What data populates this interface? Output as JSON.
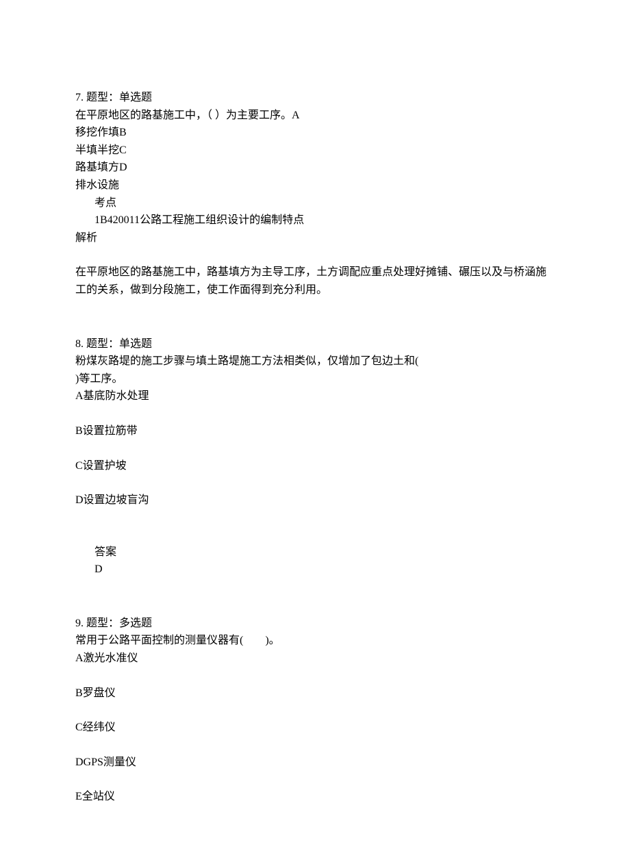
{
  "q7": {
    "header": "7. 题型：单选题",
    "stem_line1": "在平原地区的路基施工中，（ ）为主要工序。A",
    "opt_a_tail": "移挖作填B",
    "opt_b_tail": "半填半挖C",
    "opt_c_tail": "路基填方D",
    "opt_d_tail": "排水设施",
    "kaodian_label": "考点",
    "kaodian_text": "1B420011公路工程施工组织设计的编制特点",
    "jiexi_label": "解析",
    "jiexi_text": "在平原地区的路基施工中，路基填方为主导工序，土方调配应重点处理好摊铺、碾压以及与桥涵施工的关系，做到分段施工，使工作面得到充分利用。"
  },
  "q8": {
    "header": "8. 题型：单选题",
    "stem_line1": "粉煤灰路堤的施工步骤与填土路堤施工方法相类似，仅增加了包边土和(",
    "stem_line2": ")等工序。",
    "opt_a": "A基底防水处理",
    "opt_b": "B设置拉筋带",
    "opt_c": "C设置护坡",
    "opt_d": "D设置边坡盲沟",
    "answer_label": "答案",
    "answer_value": "D"
  },
  "q9": {
    "header": "9. 题型：多选题",
    "stem": "常用于公路平面控制的测量仪器有(　　)。",
    "opt_a": "A激光水准仪",
    "opt_b": "B罗盘仪",
    "opt_c": "C经纬仪",
    "opt_d": "DGPS测量仪",
    "opt_e": "E全站仪"
  }
}
